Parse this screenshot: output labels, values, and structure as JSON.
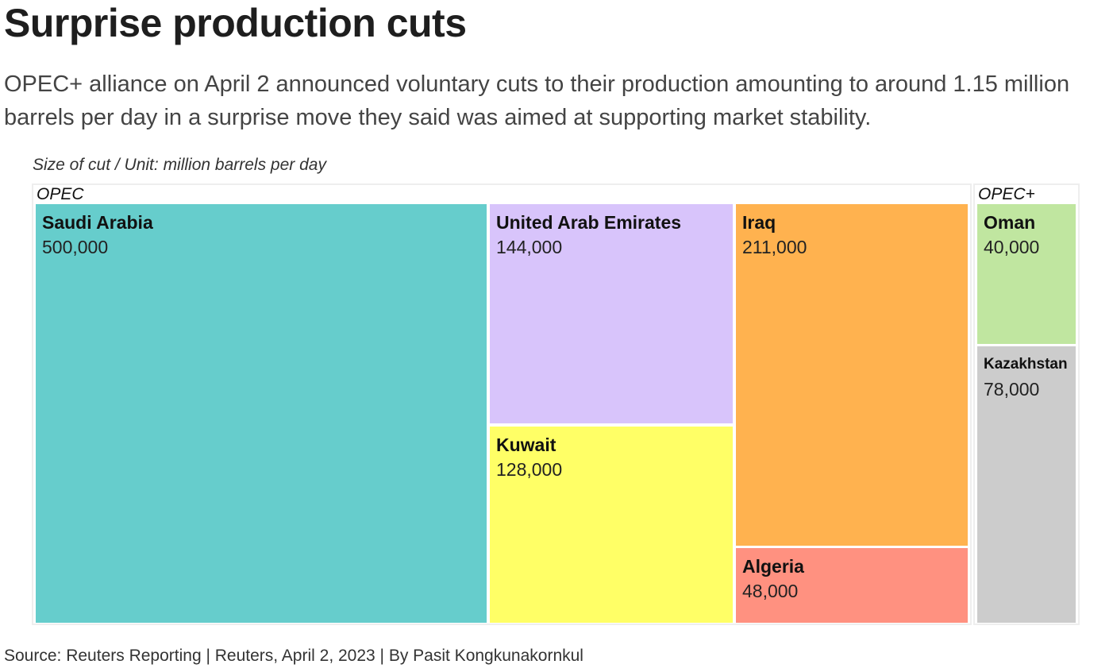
{
  "title": "Surprise production cuts",
  "subtitle": "OPEC+ alliance on April 2 announced voluntary cuts to their production amounting to around 1.15 million barrels per day in a surprise move they said was aimed at supporting market stability.",
  "source": "Source: Reuters Reporting | Reuters, April 2, 2023 | By Pasit Kongkunakornkul",
  "chart_data": {
    "type": "treemap",
    "unit_label": "Size of cut / Unit: million barrels per day",
    "groups": [
      {
        "name": "OPEC",
        "items": [
          {
            "name": "Saudi Arabia",
            "value": 500000,
            "label": "500,000",
            "color": "#66CDCC"
          },
          {
            "name": "United Arab Emirates",
            "value": 144000,
            "label": "144,000",
            "color": "#D8C4FB"
          },
          {
            "name": "Kuwait",
            "value": 128000,
            "label": "128,000",
            "color": "#FFFF66"
          },
          {
            "name": "Iraq",
            "value": 211000,
            "label": "211,000",
            "color": "#FFB24F"
          },
          {
            "name": "Algeria",
            "value": 48000,
            "label": "48,000",
            "color": "#FF9180"
          }
        ]
      },
      {
        "name": "OPEC+",
        "items": [
          {
            "name": "Oman",
            "value": 40000,
            "label": "40,000",
            "color": "#C0E6A0"
          },
          {
            "name": "Kazakhstan",
            "value": 78000,
            "label": "78,000",
            "color": "#CCCCCC"
          }
        ]
      }
    ]
  }
}
